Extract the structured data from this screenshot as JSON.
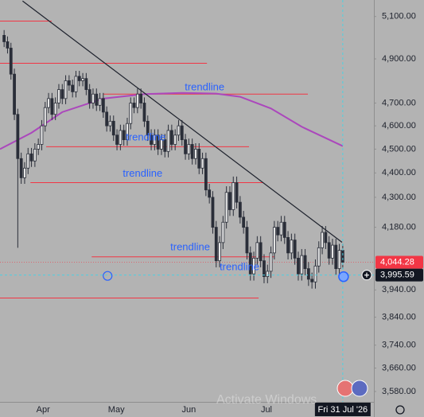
{
  "chart_data": {
    "type": "candlestick",
    "log_scale": true,
    "ylim": [
      3545,
      5180
    ],
    "xlim": [
      -1.2,
      108.1
    ],
    "yticks": [
      {
        "value": 5100,
        "label": "5,100.00"
      },
      {
        "value": 4900,
        "label": "4,900.00"
      },
      {
        "value": 4700,
        "label": "4,700.00"
      },
      {
        "value": 4600,
        "label": "4,600.00"
      },
      {
        "value": 4500,
        "label": "4,500.00"
      },
      {
        "value": 4400,
        "label": "4,400.00"
      },
      {
        "value": 4300,
        "label": "4,300.00"
      },
      {
        "value": 4180,
        "label": "4,180.00"
      },
      {
        "value": 3940,
        "label": "3,940.00"
      },
      {
        "value": 3840,
        "label": "3,840.00"
      },
      {
        "value": 3740,
        "label": "3,740.00"
      },
      {
        "value": 3660,
        "label": "3,660.00"
      },
      {
        "value": 3580,
        "label": "3,580.00"
      }
    ],
    "xticks": [
      {
        "value": 11.4,
        "label": "Apr"
      },
      {
        "value": 32.8,
        "label": "May"
      },
      {
        "value": 54,
        "label": "Jun"
      },
      {
        "value": 76.7,
        "label": "Jul"
      },
      {
        "value": 99,
        "label": "Fri 31 Jul '26"
      }
    ],
    "candles": {
      "up_color": "#e6e6e6",
      "down_color": "#2a2e39",
      "open": [
        5010,
        4980,
        4950,
        4830,
        4650,
        4460,
        4380,
        4420,
        4480,
        4450,
        4500,
        4520,
        4600,
        4680,
        4720,
        4650,
        4700,
        4760,
        4720,
        4800,
        4780,
        4750,
        4820,
        4800,
        4810,
        4760,
        4700,
        4740,
        4690,
        4720,
        4660,
        4600,
        4620,
        4560,
        4520,
        4580,
        4540,
        4610,
        4700,
        4680,
        4740,
        4700,
        4620,
        4560,
        4520,
        4560,
        4500,
        4540,
        4490,
        4580,
        4520,
        4560,
        4600,
        4540,
        4480,
        4520,
        4460,
        4500,
        4420,
        4460,
        4330,
        4300,
        4180,
        4050,
        4120,
        4200,
        4320,
        4250,
        4360,
        4280,
        4220,
        4180,
        4080,
        4000,
        4060,
        4120,
        4050,
        3990,
        4010,
        4080,
        4180,
        4150,
        4200,
        4140,
        4080,
        4130,
        4060,
        4000,
        4070,
        4020,
        3980,
        3970,
        4030,
        4100,
        4160,
        4120,
        4060,
        4110,
        4020,
        4090
      ],
      "high": [
        5035,
        5005,
        4975,
        4855,
        4675,
        4485,
        4445,
        4505,
        4505,
        4525,
        4545,
        4625,
        4705,
        4745,
        4745,
        4725,
        4785,
        4785,
        4825,
        4825,
        4805,
        4845,
        4845,
        4835,
        4835,
        4785,
        4765,
        4765,
        4745,
        4745,
        4685,
        4645,
        4645,
        4585,
        4605,
        4605,
        4635,
        4725,
        4725,
        4765,
        4765,
        4725,
        4645,
        4585,
        4585,
        4585,
        4565,
        4565,
        4605,
        4605,
        4585,
        4625,
        4625,
        4565,
        4545,
        4545,
        4525,
        4525,
        4485,
        4485,
        4355,
        4325,
        4205,
        4145,
        4225,
        4345,
        4345,
        4385,
        4385,
        4305,
        4245,
        4205,
        4105,
        4085,
        4145,
        4145,
        4075,
        4035,
        4105,
        4205,
        4205,
        4225,
        4225,
        4165,
        4155,
        4155,
        4085,
        4095,
        4095,
        4045,
        4005,
        4055,
        4125,
        4185,
        4185,
        4145,
        4135,
        4135,
        4115,
        4115
      ],
      "low": [
        4955,
        4925,
        4805,
        4625,
        4100,
        4355,
        4355,
        4395,
        4425,
        4425,
        4475,
        4495,
        4575,
        4655,
        4625,
        4625,
        4675,
        4695,
        4695,
        4755,
        4725,
        4725,
        4775,
        4775,
        4735,
        4675,
        4675,
        4665,
        4665,
        4635,
        4575,
        4575,
        4535,
        4495,
        4495,
        4515,
        4515,
        4585,
        4655,
        4655,
        4675,
        4595,
        4535,
        4495,
        4495,
        4475,
        4475,
        4465,
        4465,
        4495,
        4495,
        4535,
        4515,
        4455,
        4455,
        4435,
        4435,
        4395,
        4395,
        4305,
        4275,
        4155,
        4025,
        4025,
        4095,
        4175,
        4225,
        4225,
        4255,
        4195,
        4155,
        4055,
        3975,
        3975,
        4035,
        4025,
        3965,
        3965,
        3985,
        4055,
        4125,
        4125,
        4115,
        4055,
        4055,
        4035,
        3975,
        3975,
        3995,
        3955,
        3945,
        3945,
        4005,
        4075,
        4095,
        4035,
        4035,
        3995,
        3995,
        4019
      ],
      "close": [
        4980,
        4950,
        4830,
        4650,
        4460,
        4380,
        4420,
        4480,
        4450,
        4500,
        4520,
        4600,
        4680,
        4720,
        4650,
        4700,
        4760,
        4720,
        4800,
        4780,
        4750,
        4820,
        4800,
        4810,
        4760,
        4700,
        4740,
        4690,
        4720,
        4660,
        4600,
        4620,
        4560,
        4520,
        4580,
        4540,
        4610,
        4700,
        4680,
        4740,
        4700,
        4620,
        4560,
        4520,
        4560,
        4500,
        4540,
        4490,
        4580,
        4520,
        4560,
        4600,
        4540,
        4480,
        4520,
        4460,
        4500,
        4420,
        4460,
        4330,
        4300,
        4180,
        4050,
        4120,
        4200,
        4320,
        4250,
        4360,
        4280,
        4220,
        4180,
        4080,
        4000,
        4060,
        4120,
        4050,
        3990,
        4010,
        4080,
        4180,
        4150,
        4200,
        4140,
        4080,
        4130,
        4060,
        4000,
        4070,
        4020,
        3980,
        3970,
        4030,
        4100,
        4160,
        4120,
        4060,
        4110,
        4020,
        4090,
        4044.28
      ]
    },
    "last_price_label": "4,044.28",
    "last_price_color": "#f23645",
    "crosshair": {
      "x": 99,
      "y": 3995.59,
      "label": "3,995.59",
      "color": "#4dd0e1"
    },
    "moving_average": {
      "color": "#ab47bc",
      "x": [
        -1.2,
        8,
        17,
        29,
        41,
        52,
        62,
        69,
        78,
        87,
        99
      ],
      "values": [
        4500,
        4570,
        4660,
        4720,
        4740,
        4745,
        4742,
        4728,
        4676,
        4596,
        4513
      ]
    },
    "trendline": {
      "color": "#1e222d",
      "x": [
        5.4,
        98.8
      ],
      "values": [
        5175,
        4121
      ]
    },
    "levels": {
      "color": "#f23645",
      "values": [
        5078,
        4880,
        4740,
        4510,
        4360,
        4065,
        3910
      ],
      "x_from": [
        -1.2,
        -1.2,
        29.1,
        12.3,
        7.7,
        25.6,
        -1.2
      ],
      "x_to": [
        13.9,
        59.3,
        88.8,
        71.6,
        75.6,
        79.1,
        74.4
      ]
    },
    "annotations": {
      "color": "#2962ff",
      "texts": [
        "trendline",
        "trendline",
        "trendline",
        "trendline",
        "trendline"
      ],
      "x": [
        52.8,
        35.6,
        34.7,
        48.6,
        63
      ],
      "y": [
        4769,
        4548,
        4396,
        4101,
        4025
      ]
    },
    "watermark": "Activate Windows"
  }
}
